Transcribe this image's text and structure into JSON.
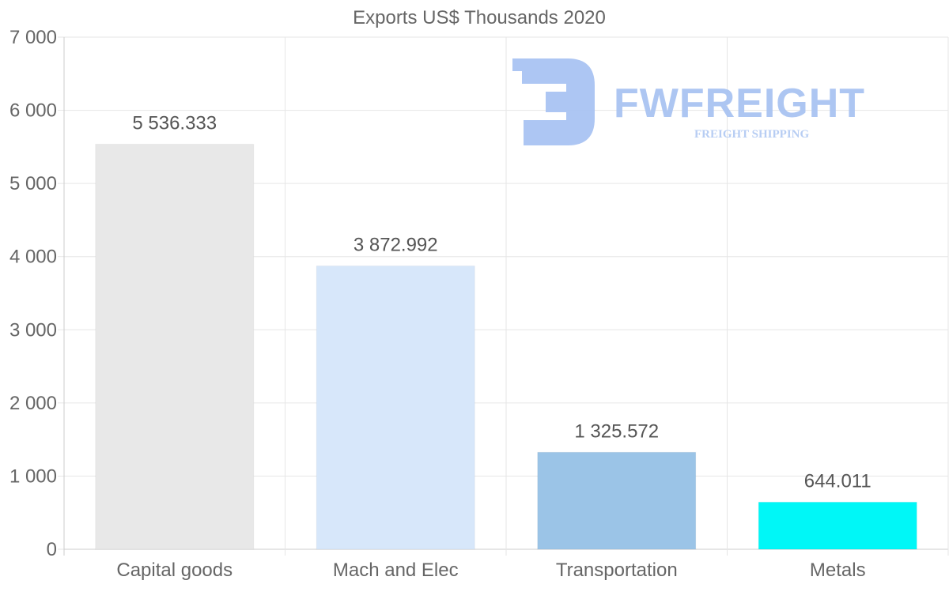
{
  "chart_data": {
    "type": "bar",
    "title": "Exports US$ Thousands 2020",
    "categories": [
      "Capital goods",
      "Mach and Elec",
      "Transportation",
      "Metals"
    ],
    "values": [
      5536.333,
      3872.992,
      1325.572,
      644.011
    ],
    "value_labels": [
      "5 536.333",
      "3 872.992",
      "1 325.572",
      "644.011"
    ],
    "bar_colors": [
      "#e8e8e8",
      "#d7e7fa",
      "#9bc4e7",
      "#00f7f7"
    ],
    "xlabel": "",
    "ylabel": "",
    "ylim": [
      0,
      7000
    ],
    "yticks": [
      0,
      1000,
      2000,
      3000,
      4000,
      5000,
      6000,
      7000
    ],
    "ytick_labels": [
      "0",
      "1 000",
      "2 000",
      "3 000",
      "4 000",
      "5 000",
      "6 000",
      "7 000"
    ],
    "grid": true,
    "legend": "none"
  },
  "watermark": {
    "brand": "FWFREIGHT",
    "tagline": "FREIGHT SHIPPING"
  }
}
